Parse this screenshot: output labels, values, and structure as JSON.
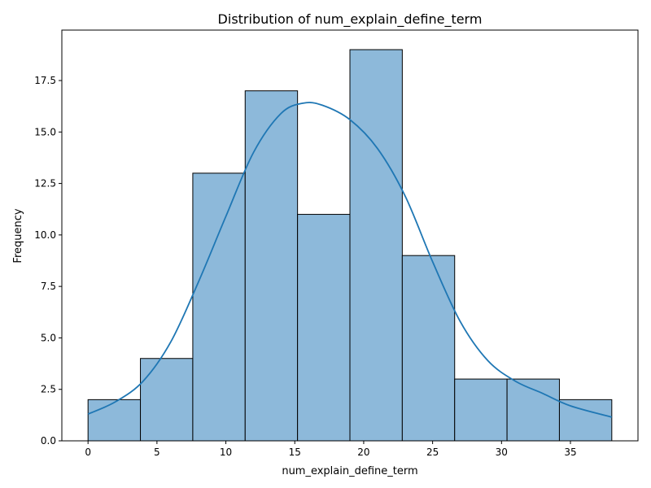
{
  "chart_data": {
    "type": "bar",
    "title": "Distribution of num_explain_define_term",
    "xlabel": "num_explain_define_term",
    "ylabel": "Frequency",
    "bin_edges": [
      0,
      3.8,
      7.6,
      11.4,
      15.2,
      19.0,
      22.8,
      26.6,
      30.4,
      34.2,
      38.0
    ],
    "values": [
      2,
      4,
      13,
      17,
      11,
      19,
      9,
      3,
      3,
      2
    ],
    "xlim": [
      -1.9,
      39.9
    ],
    "ylim": [
      0,
      19.95
    ],
    "xticks": [
      0,
      5,
      10,
      15,
      20,
      25,
      30,
      35
    ],
    "xtick_labels": [
      "0",
      "5",
      "10",
      "15",
      "20",
      "25",
      "30",
      "35"
    ],
    "yticks": [
      0,
      2.5,
      5,
      7.5,
      10,
      12.5,
      15,
      17.5
    ],
    "ytick_labels": [
      "0.0",
      "2.5",
      "5.0",
      "7.5",
      "10.0",
      "12.5",
      "15.0",
      "17.5"
    ],
    "kde": {
      "x": [
        0,
        2,
        4,
        6,
        8,
        10,
        12,
        14,
        15.6,
        17,
        19,
        21,
        23,
        25,
        27,
        29,
        31,
        33,
        35,
        38
      ],
      "y": [
        1.3,
        1.9,
        2.9,
        4.8,
        7.7,
        10.9,
        14.0,
        15.9,
        16.4,
        16.3,
        15.6,
        14.2,
        11.9,
        8.7,
        5.8,
        3.9,
        2.9,
        2.3,
        1.7,
        1.15
      ]
    },
    "grid": false,
    "colors": {
      "bar_fill": "#8db9da",
      "bar_edge": "#000000",
      "kde_line": "#1f77b4"
    }
  }
}
